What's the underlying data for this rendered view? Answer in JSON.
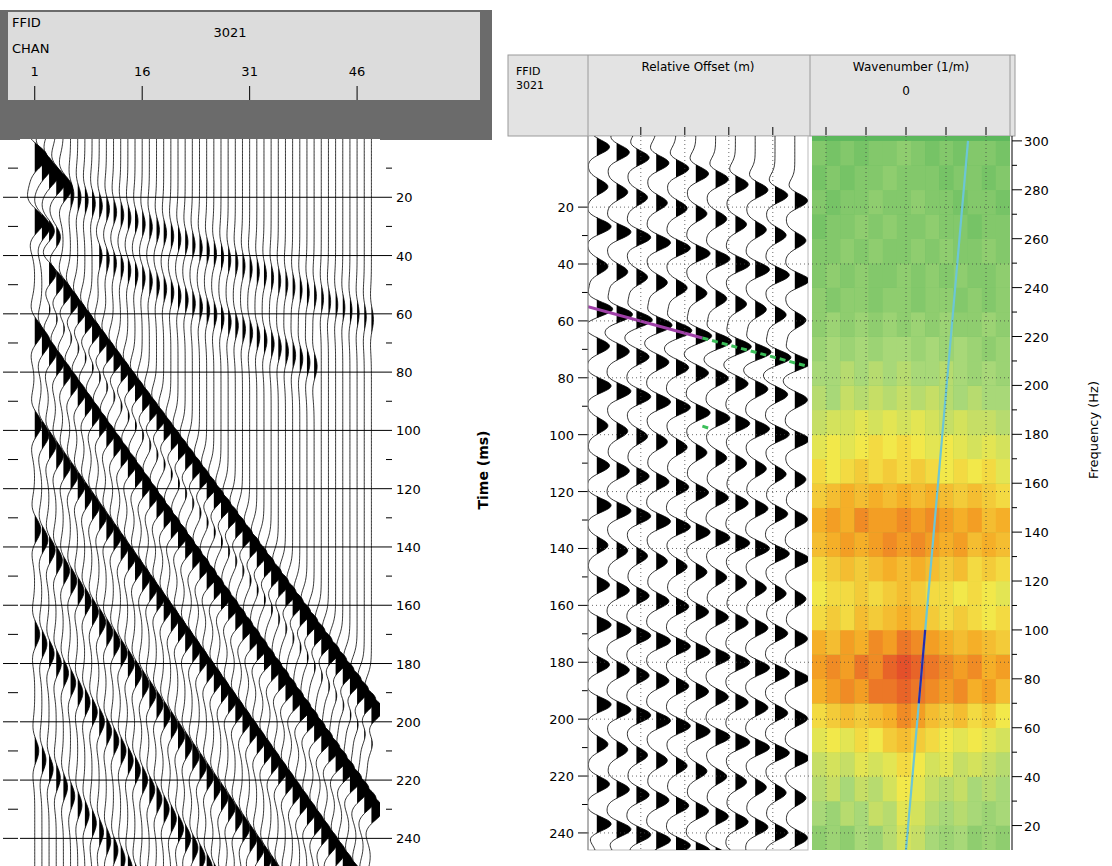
{
  "chart_data": [
    {
      "type": "wiggle",
      "title": "3021",
      "id_label": "FFID",
      "x_label": "CHAN",
      "y_label": "Time (ms)",
      "xlim": [
        -0.5,
        48.5
      ],
      "xticks": [
        1,
        16,
        31,
        46
      ],
      "ylim": [
        0,
        250
      ],
      "yticks": [
        20,
        40,
        60,
        80,
        100,
        120,
        140,
        160,
        180,
        200,
        220,
        240
      ],
      "grid": true,
      "channels": [
        1,
        2,
        3,
        4,
        5,
        6,
        7,
        8,
        9,
        10,
        11,
        12,
        13,
        14,
        15,
        16,
        17,
        18,
        19,
        20,
        21,
        22,
        23,
        24,
        25,
        26,
        27,
        28,
        29,
        30,
        31,
        32,
        33,
        34,
        35,
        36,
        37,
        38,
        39,
        40,
        41,
        42,
        43,
        44,
        45,
        46,
        47,
        48
      ],
      "events": [
        {
          "channels": [
            1,
            5
          ],
          "t": [
            6,
            16
          ],
          "amp": [
            1.4,
            0.6
          ]
        },
        {
          "channels": [
            1,
            4
          ],
          "t": [
            28,
            34
          ],
          "amp": [
            1.0,
            0.5
          ]
        },
        {
          "channels": [
            1,
            48
          ],
          "t": [
            14,
            62
          ],
          "amp": [
            0.35,
            0.2
          ]
        },
        {
          "channels": [
            10,
            40
          ],
          "t": [
            40,
            78
          ],
          "amp": [
            0.3,
            0.3
          ]
        },
        {
          "channels": [
            3,
            48
          ],
          "t": [
            46,
            196
          ],
          "amp": [
            0.9,
            1.4
          ]
        },
        {
          "channels": [
            3,
            48
          ],
          "t": [
            58,
            206
          ],
          "amp": [
            0.4,
            0.6
          ]
        },
        {
          "channels": [
            1,
            48
          ],
          "t": [
            66,
            230
          ],
          "amp": [
            0.8,
            1.2
          ]
        },
        {
          "channels": [
            1,
            48
          ],
          "t": [
            98,
            262
          ],
          "amp": [
            0.7,
            1.0
          ]
        },
        {
          "channels": [
            1,
            48
          ],
          "t": [
            134,
            300
          ],
          "amp": [
            0.6,
            0.8
          ]
        },
        {
          "channels": [
            1,
            40
          ],
          "t": [
            170,
            300
          ],
          "amp": [
            0.5,
            0.6
          ]
        },
        {
          "channels": [
            1,
            30
          ],
          "t": [
            210,
            300
          ],
          "amp": [
            0.4,
            0.5
          ]
        }
      ]
    },
    {
      "type": "wiggle",
      "id_label": "FFID",
      "title": "3021",
      "x_label": "Relative Offset (m)",
      "xlim": [
        0,
        50
      ],
      "xminor": [
        12,
        22,
        32,
        42
      ],
      "ylim": [
        -5,
        246
      ],
      "yticks": [
        20,
        40,
        60,
        80,
        100,
        120,
        140,
        160,
        180,
        200,
        220,
        240
      ],
      "grid": true,
      "offsets": [
        2,
        6.5,
        11,
        15.5,
        20,
        24.5,
        29,
        33.5,
        38,
        42.5,
        47
      ],
      "event_offsets": [
        0,
        50
      ],
      "events": [
        {
          "t": [
            -2,
            19
          ],
          "amp": 0.8
        },
        {
          "t": [
            12,
            33
          ],
          "amp": 0.7
        },
        {
          "t": [
            26,
            47
          ],
          "amp": 0.9
        },
        {
          "t": [
            40,
            61
          ],
          "amp": 0.7
        },
        {
          "t": [
            55,
            76
          ],
          "amp": 1.0
        },
        {
          "t": [
            68,
            89
          ],
          "amp": 0.8
        },
        {
          "t": [
            82,
            103
          ],
          "amp": 0.9
        },
        {
          "t": [
            96,
            117
          ],
          "amp": 0.7
        },
        {
          "t": [
            110,
            131
          ],
          "amp": 0.8
        },
        {
          "t": [
            124,
            145
          ],
          "amp": 0.9
        },
        {
          "t": [
            138,
            159
          ],
          "amp": 0.7
        },
        {
          "t": [
            152,
            173
          ],
          "amp": 0.8
        },
        {
          "t": [
            166,
            187
          ],
          "amp": 0.9
        },
        {
          "t": [
            180,
            201
          ],
          "amp": 0.8
        },
        {
          "t": [
            194,
            215
          ],
          "amp": 0.9
        },
        {
          "t": [
            208,
            229
          ],
          "amp": 0.7
        },
        {
          "t": [
            222,
            243
          ],
          "amp": 0.8
        },
        {
          "t": [
            236,
            257
          ],
          "amp": 0.9
        }
      ],
      "picks": [
        {
          "x": [
            0,
            26
          ],
          "t": [
            55,
            66
          ],
          "color": "#a040a8",
          "line_style": "solid"
        },
        {
          "x": [
            26,
            50
          ],
          "t": [
            66,
            76
          ],
          "color": "#3cbf5a",
          "line_style": "dashed"
        },
        {
          "x": [
            26,
            28
          ],
          "t": [
            97,
            98
          ],
          "color": "#3cbf5a",
          "line_style": "dashed"
        }
      ]
    },
    {
      "type": "heatmap",
      "x_label": "Wavenumber (1/m)",
      "y_label": "Frequency (Hz)",
      "xlim": [
        -0.047,
        0.052
      ],
      "xticks": [
        0
      ],
      "xminor": [
        -0.04,
        -0.02,
        0.02,
        0.04
      ],
      "ylim": [
        10,
        302
      ],
      "yticks": [
        20,
        40,
        60,
        80,
        100,
        120,
        140,
        160,
        180,
        200,
        220,
        240,
        260,
        280,
        300
      ],
      "zlim": [
        0,
        1
      ],
      "color_stops": [
        0,
        0.3,
        0.55,
        0.78,
        1
      ],
      "colors": [
        "#5db85d",
        "#a8d878",
        "#f2e84a",
        "#f5a623",
        "#e4502a"
      ],
      "k_edges": [
        -0.047,
        -0.0399,
        -0.0329,
        -0.0258,
        -0.0187,
        -0.0116,
        -0.0046,
        0.0025,
        0.0096,
        0.0166,
        0.0237,
        0.0308,
        0.0379,
        0.0449,
        0.052
      ],
      "f_edges": [
        10,
        20,
        30,
        40,
        50,
        60,
        70,
        80,
        90,
        100,
        110,
        120,
        130,
        140,
        150,
        160,
        170,
        180,
        190,
        200,
        210,
        220,
        230,
        240,
        250,
        260,
        270,
        280,
        290,
        300
      ],
      "cells": [
        [
          0.2,
          0.25,
          0.2,
          0.3,
          0.25,
          0.35,
          0.45,
          0.4,
          0.3,
          0.25,
          0.3,
          0.2,
          0.25,
          0.2
        ],
        [
          0.3,
          0.25,
          0.35,
          0.3,
          0.4,
          0.35,
          0.5,
          0.45,
          0.35,
          0.3,
          0.35,
          0.3,
          0.25,
          0.3
        ],
        [
          0.35,
          0.4,
          0.3,
          0.4,
          0.35,
          0.45,
          0.55,
          0.5,
          0.4,
          0.35,
          0.4,
          0.3,
          0.35,
          0.3
        ],
        [
          0.4,
          0.45,
          0.4,
          0.5,
          0.45,
          0.5,
          0.6,
          0.55,
          0.45,
          0.5,
          0.4,
          0.45,
          0.4,
          0.35
        ],
        [
          0.5,
          0.55,
          0.5,
          0.6,
          0.55,
          0.65,
          0.7,
          0.65,
          0.6,
          0.55,
          0.5,
          0.55,
          0.5,
          0.45
        ],
        [
          0.6,
          0.65,
          0.7,
          0.65,
          0.7,
          0.75,
          0.85,
          0.8,
          0.7,
          0.65,
          0.7,
          0.6,
          0.65,
          0.55
        ],
        [
          0.75,
          0.8,
          0.85,
          0.8,
          0.9,
          0.9,
          0.95,
          0.9,
          0.85,
          0.8,
          0.85,
          0.75,
          0.8,
          0.7
        ],
        [
          0.8,
          0.85,
          0.8,
          0.9,
          0.85,
          0.95,
          1,
          0.95,
          0.9,
          0.85,
          0.8,
          0.85,
          0.75,
          0.8
        ],
        [
          0.75,
          0.7,
          0.8,
          0.75,
          0.85,
          0.8,
          0.9,
          0.85,
          0.8,
          0.75,
          0.7,
          0.75,
          0.7,
          0.65
        ],
        [
          0.6,
          0.65,
          0.6,
          0.7,
          0.65,
          0.7,
          0.75,
          0.7,
          0.65,
          0.6,
          0.65,
          0.6,
          0.55,
          0.6
        ],
        [
          0.55,
          0.6,
          0.6,
          0.65,
          0.6,
          0.65,
          0.7,
          0.65,
          0.6,
          0.6,
          0.55,
          0.6,
          0.55,
          0.5
        ],
        [
          0.6,
          0.65,
          0.7,
          0.65,
          0.7,
          0.75,
          0.7,
          0.75,
          0.7,
          0.65,
          0.7,
          0.6,
          0.65,
          0.6
        ],
        [
          0.7,
          0.75,
          0.8,
          0.75,
          0.8,
          0.85,
          0.8,
          0.85,
          0.8,
          0.75,
          0.8,
          0.7,
          0.75,
          0.7
        ],
        [
          0.75,
          0.8,
          0.75,
          0.85,
          0.8,
          0.8,
          0.85,
          0.8,
          0.85,
          0.8,
          0.75,
          0.8,
          0.7,
          0.75
        ],
        [
          0.65,
          0.7,
          0.75,
          0.7,
          0.75,
          0.7,
          0.75,
          0.7,
          0.75,
          0.7,
          0.65,
          0.7,
          0.65,
          0.6
        ],
        [
          0.6,
          0.55,
          0.6,
          0.65,
          0.6,
          0.65,
          0.6,
          0.65,
          0.6,
          0.55,
          0.6,
          0.55,
          0.6,
          0.5
        ],
        [
          0.5,
          0.55,
          0.5,
          0.55,
          0.6,
          0.55,
          0.6,
          0.55,
          0.5,
          0.55,
          0.5,
          0.45,
          0.5,
          0.45
        ],
        [
          0.4,
          0.45,
          0.45,
          0.5,
          0.45,
          0.5,
          0.45,
          0.5,
          0.45,
          0.4,
          0.45,
          0.4,
          0.4,
          0.35
        ],
        [
          0.35,
          0.3,
          0.4,
          0.35,
          0.4,
          0.35,
          0.4,
          0.35,
          0.4,
          0.35,
          0.3,
          0.35,
          0.3,
          0.3
        ],
        [
          0.3,
          0.3,
          0.35,
          0.3,
          0.35,
          0.3,
          0.35,
          0.3,
          0.3,
          0.35,
          0.3,
          0.25,
          0.3,
          0.25
        ],
        [
          0.25,
          0.3,
          0.25,
          0.3,
          0.25,
          0.3,
          0.3,
          0.25,
          0.3,
          0.25,
          0.3,
          0.25,
          0.2,
          0.25
        ],
        [
          0.2,
          0.25,
          0.2,
          0.25,
          0.2,
          0.25,
          0.2,
          0.25,
          0.2,
          0.25,
          0.2,
          0.2,
          0.25,
          0.2
        ],
        [
          0.2,
          0.15,
          0.2,
          0.2,
          0.15,
          0.2,
          0.2,
          0.15,
          0.2,
          0.2,
          0.15,
          0.2,
          0.15,
          0.2
        ],
        [
          0.15,
          0.2,
          0.15,
          0.2,
          0.15,
          0.15,
          0.2,
          0.15,
          0.2,
          0.15,
          0.2,
          0.15,
          0.15,
          0.2
        ],
        [
          0.15,
          0.15,
          0.2,
          0.15,
          0.2,
          0.15,
          0.15,
          0.2,
          0.15,
          0.2,
          0.15,
          0.15,
          0.2,
          0.15
        ],
        [
          0.1,
          0.15,
          0.15,
          0.2,
          0.15,
          0.2,
          0.15,
          0.15,
          0.2,
          0.15,
          0.15,
          0.1,
          0.15,
          0.15
        ],
        [
          0.15,
          0.1,
          0.15,
          0.15,
          0.2,
          0.15,
          0.15,
          0.2,
          0.15,
          0.15,
          0.1,
          0.15,
          0.15,
          0.1
        ],
        [
          0.1,
          0.15,
          0.1,
          0.15,
          0.15,
          0.2,
          0.15,
          0.15,
          0.15,
          0.1,
          0.15,
          0.15,
          0.1,
          0.15
        ],
        [
          0.15,
          0.1,
          0.15,
          0.1,
          0.15,
          0.15,
          0.2,
          0.15,
          0.1,
          0.15,
          0.1,
          0.15,
          0.15,
          0.1
        ]
      ],
      "lines": [
        {
          "k": [
            0,
            0.031
          ],
          "f": [
            10,
            300
          ],
          "color": "#6cc6d6"
        },
        {
          "k": [
            0.0064,
            0.0096
          ],
          "f": [
            70,
            100
          ],
          "color": "#2b2ba8"
        }
      ]
    }
  ]
}
